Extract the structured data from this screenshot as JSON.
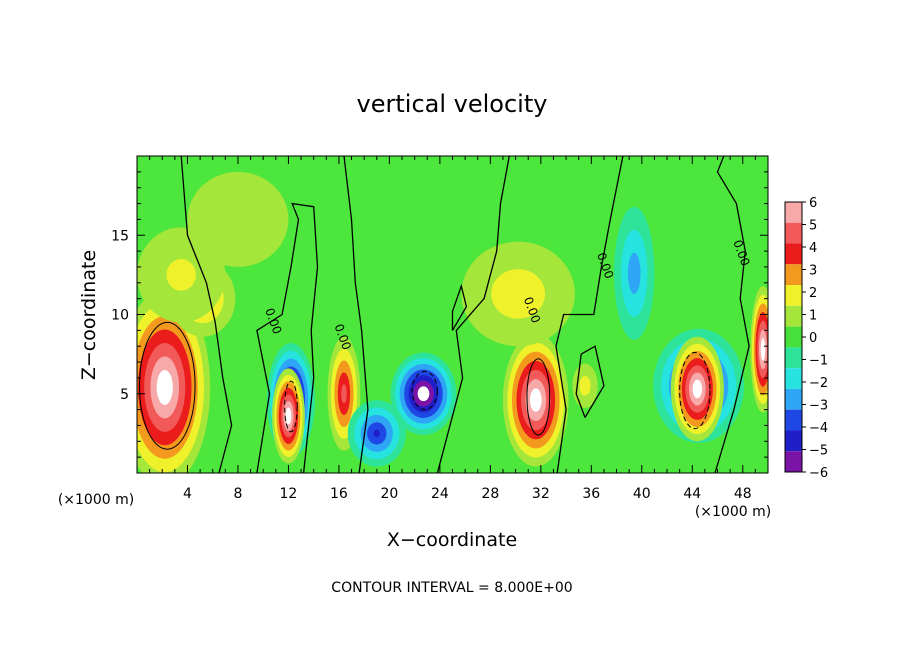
{
  "chart_data": {
    "type": "heatmap",
    "title": "vertical velocity",
    "xlabel": "X−coordinate",
    "ylabel": "Z−coordinate",
    "x_unit": "(×1000 m)",
    "x_unit_right": "(×1000 m)",
    "footer": "CONTOUR INTERVAL = 8.000E+00",
    "xlim": [
      0,
      50
    ],
    "ylim": [
      0,
      20
    ],
    "x_ticks": [
      4,
      8,
      12,
      16,
      20,
      24,
      28,
      32,
      36,
      40,
      44,
      48
    ],
    "x_tick_labels": [
      "4",
      "8",
      "12",
      "16",
      "20",
      "24",
      "28",
      "32",
      "36",
      "40",
      "44",
      "48"
    ],
    "y_ticks": [
      5,
      10,
      15
    ],
    "y_tick_labels": [
      "5",
      "10",
      "15"
    ],
    "colorbar": {
      "levels": [
        6,
        5,
        4,
        3,
        2,
        1,
        0,
        -1,
        -2,
        -3,
        -4,
        -5,
        -6
      ],
      "labels": [
        "6",
        "5",
        "4",
        "3",
        "2",
        "1",
        "0",
        "−1",
        "−2",
        "−3",
        "−4",
        "−5",
        "−6"
      ],
      "colors": [
        "#f7a8a8",
        "#f25a5a",
        "#ea1c1c",
        "#f39a1e",
        "#eff22a",
        "#a4e63a",
        "#47e03a",
        "#2de39a",
        "#27e3df",
        "#2fa5f5",
        "#1f47e5",
        "#1f1ec8",
        "#7b13a6"
      ]
    },
    "field_background_color": "#4ce63c",
    "contour_labels": [
      {
        "text": "0.00",
        "x": 10.5,
        "z": 9.5
      },
      {
        "text": "0.00",
        "x": 16.0,
        "z": 8.5
      },
      {
        "text": "0.00",
        "x": 31.0,
        "z": 10.2
      },
      {
        "text": "0.00",
        "x": 36.8,
        "z": 13.0
      },
      {
        "text": "0.00",
        "x": 47.6,
        "z": 13.8
      }
    ],
    "cells": [
      {
        "x": 2.2,
        "z": 5.4,
        "rx": 3.6,
        "rz": 6.2,
        "w": 9
      },
      {
        "x": 5.2,
        "z": 11.0,
        "rx": 2.6,
        "rz": 2.4,
        "w": 2.5
      },
      {
        "x": 3.5,
        "z": 12.5,
        "rx": 3.5,
        "rz": 3.0,
        "w": 1.2
      },
      {
        "x": 12.2,
        "z": 4.6,
        "rx": 1.9,
        "rz": 3.6,
        "w": -9
      },
      {
        "x": 12.0,
        "z": 3.6,
        "rx": 1.3,
        "rz": 3.0,
        "w": 9
      },
      {
        "x": 16.4,
        "z": 5.0,
        "rx": 1.3,
        "rz": 3.6,
        "w": 4.5
      },
      {
        "x": 22.7,
        "z": 5.0,
        "rx": 2.6,
        "rz": 2.6,
        "w": -9
      },
      {
        "x": 19.0,
        "z": 2.5,
        "rx": 2.3,
        "rz": 2.1,
        "w": -4.2
      },
      {
        "x": 31.6,
        "z": 4.6,
        "rx": 2.6,
        "rz": 4.2,
        "w": 9
      },
      {
        "x": 30.2,
        "z": 11.3,
        "rx": 4.5,
        "rz": 3.3,
        "w": 1.6
      },
      {
        "x": 39.4,
        "z": 12.6,
        "rx": 1.6,
        "rz": 4.2,
        "w": -2.6
      },
      {
        "x": 44.5,
        "z": 5.5,
        "rx": 3.6,
        "rz": 3.6,
        "w": -5.5
      },
      {
        "x": 44.4,
        "z": 5.3,
        "rx": 2.1,
        "rz": 3.3,
        "w": 9
      },
      {
        "x": 49.6,
        "z": 7.8,
        "rx": 1.0,
        "rz": 4.0,
        "w": 7
      },
      {
        "x": 8.0,
        "z": 16.0,
        "rx": 4.0,
        "rz": 3.0,
        "w": 0.8
      },
      {
        "x": 35.5,
        "z": 5.5,
        "rx": 1.0,
        "rz": 1.4,
        "w": 1.5
      }
    ]
  }
}
